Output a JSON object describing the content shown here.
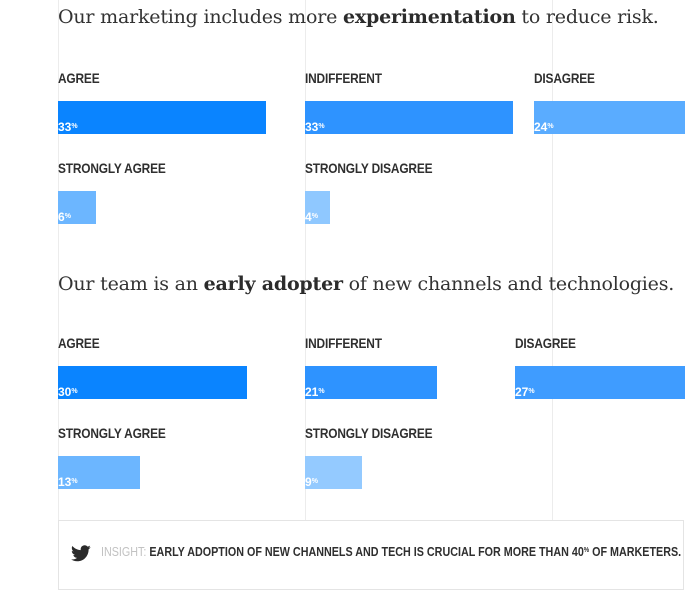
{
  "chart_data": [
    {
      "type": "bar",
      "title_parts": [
        "Our marketing includes more ",
        "experimentation",
        " to reduce risk."
      ],
      "categories": [
        "AGREE",
        "INDIFFERENT",
        "DISAGREE",
        "STRONGLY AGREE",
        "STRONGLY DISAGREE"
      ],
      "values": [
        33,
        33,
        24,
        6,
        4
      ],
      "unit": "%",
      "colors": [
        "#0a84ff",
        "#2e93ff",
        "#5aacff",
        "#6cb6ff",
        "#8fc8ff"
      ]
    },
    {
      "type": "bar",
      "title_parts": [
        "Our team is an ",
        "early adopter",
        " of new channels and technologies."
      ],
      "categories": [
        "AGREE",
        "INDIFFERENT",
        "DISAGREE",
        "STRONGLY AGREE",
        "STRONGLY DISAGREE"
      ],
      "values": [
        30,
        21,
        27,
        13,
        9
      ],
      "unit": "%",
      "colors": [
        "#0a84ff",
        "#2e93ff",
        "#3f9cff",
        "#6cb6ff",
        "#94caff"
      ]
    }
  ],
  "insight": {
    "icon": "twitter-icon",
    "label": "INSIGHT:",
    "text_before": " EARLY ADOPTION OF NEW CHANNELS AND TECH IS CRUCIAL FOR MORE THAN 40",
    "sup": "%",
    "text_after": " OF MARKETERS."
  }
}
